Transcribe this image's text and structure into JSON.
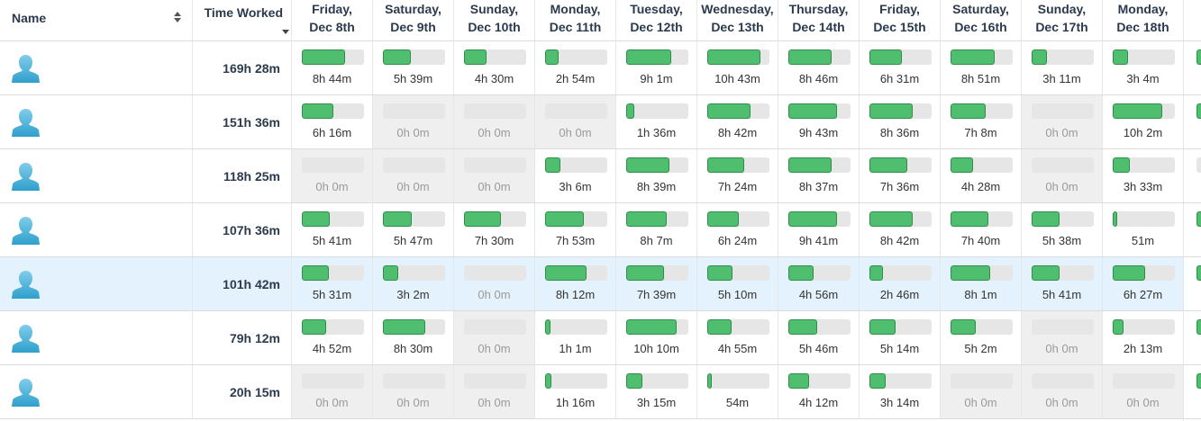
{
  "header": {
    "name_label": "Name",
    "time_label": "Time Worked",
    "days": [
      {
        "line1": "Friday,",
        "line2": "Dec 8th"
      },
      {
        "line1": "Saturday,",
        "line2": "Dec 9th"
      },
      {
        "line1": "Sunday,",
        "line2": "Dec 10th"
      },
      {
        "line1": "Monday,",
        "line2": "Dec 11th"
      },
      {
        "line1": "Tuesday,",
        "line2": "Dec 12th"
      },
      {
        "line1": "Wednesday,",
        "line2": "Dec 13th"
      },
      {
        "line1": "Thursday,",
        "line2": "Dec 14th"
      },
      {
        "line1": "Friday,",
        "line2": "Dec 15th"
      },
      {
        "line1": "Saturday,",
        "line2": "Dec 16th"
      },
      {
        "line1": "Sunday,",
        "line2": "Dec 17th"
      },
      {
        "line1": "Monday,",
        "line2": "Dec 18th"
      }
    ]
  },
  "icons": {
    "avatar": "user-silhouette-icon",
    "sort": "sort-icon",
    "sort_active": "sort-desc-caret-icon"
  },
  "colors": {
    "bar_fill": "#4fbe6f",
    "bar_track": "#e6e6e6",
    "highlight_row": "#e3f2fc",
    "zero_cell": "#efefef",
    "header_text": "#2c3a4e"
  },
  "rows": [
    {
      "total": "169h 28m",
      "highlight": false,
      "days": [
        {
          "text": "8h 44m",
          "fill": 0.7
        },
        {
          "text": "5h 39m",
          "fill": 0.45
        },
        {
          "text": "4h 30m",
          "fill": 0.36
        },
        {
          "text": "2h 54m",
          "fill": 0.22
        },
        {
          "text": "9h 1m",
          "fill": 0.72
        },
        {
          "text": "10h 43m",
          "fill": 0.86
        },
        {
          "text": "8h 46m",
          "fill": 0.7
        },
        {
          "text": "6h 31m",
          "fill": 0.52
        },
        {
          "text": "8h 51m",
          "fill": 0.71
        },
        {
          "text": "3h 11m",
          "fill": 0.25
        },
        {
          "text": "3h 4m",
          "fill": 0.25
        }
      ]
    },
    {
      "total": "151h 36m",
      "highlight": false,
      "days": [
        {
          "text": "6h 16m",
          "fill": 0.5
        },
        {
          "text": "0h 0m",
          "fill": 0
        },
        {
          "text": "0h 0m",
          "fill": 0
        },
        {
          "text": "0h 0m",
          "fill": 0
        },
        {
          "text": "1h 36m",
          "fill": 0.13
        },
        {
          "text": "8h 42m",
          "fill": 0.7
        },
        {
          "text": "9h 43m",
          "fill": 0.78
        },
        {
          "text": "8h 36m",
          "fill": 0.69
        },
        {
          "text": "7h 8m",
          "fill": 0.57
        },
        {
          "text": "0h 0m",
          "fill": 0
        },
        {
          "text": "10h 2m",
          "fill": 0.8
        }
      ]
    },
    {
      "total": "118h 25m",
      "highlight": false,
      "days": [
        {
          "text": "0h 0m",
          "fill": 0
        },
        {
          "text": "0h 0m",
          "fill": 0
        },
        {
          "text": "0h 0m",
          "fill": 0
        },
        {
          "text": "3h 6m",
          "fill": 0.25
        },
        {
          "text": "8h 39m",
          "fill": 0.69
        },
        {
          "text": "7h 24m",
          "fill": 0.59
        },
        {
          "text": "8h 37m",
          "fill": 0.69
        },
        {
          "text": "7h 36m",
          "fill": 0.61
        },
        {
          "text": "4h 28m",
          "fill": 0.36
        },
        {
          "text": "0h 0m",
          "fill": 0
        },
        {
          "text": "3h 33m",
          "fill": 0.28
        }
      ]
    },
    {
      "total": "107h 36m",
      "highlight": false,
      "days": [
        {
          "text": "5h 41m",
          "fill": 0.45
        },
        {
          "text": "5h 47m",
          "fill": 0.46
        },
        {
          "text": "7h 30m",
          "fill": 0.6
        },
        {
          "text": "7h 53m",
          "fill": 0.63
        },
        {
          "text": "8h 7m",
          "fill": 0.65
        },
        {
          "text": "6h 24m",
          "fill": 0.51
        },
        {
          "text": "9h 41m",
          "fill": 0.78
        },
        {
          "text": "8h 42m",
          "fill": 0.7
        },
        {
          "text": "7h 40m",
          "fill": 0.61
        },
        {
          "text": "5h 38m",
          "fill": 0.45
        },
        {
          "text": "51m",
          "fill": 0.07
        }
      ]
    },
    {
      "total": "101h 42m",
      "highlight": true,
      "days": [
        {
          "text": "5h 31m",
          "fill": 0.44
        },
        {
          "text": "3h 2m",
          "fill": 0.24
        },
        {
          "text": "0h 0m",
          "fill": 0
        },
        {
          "text": "8h 12m",
          "fill": 0.66
        },
        {
          "text": "7h 39m",
          "fill": 0.61
        },
        {
          "text": "5h 10m",
          "fill": 0.41
        },
        {
          "text": "4h 56m",
          "fill": 0.4
        },
        {
          "text": "2h 46m",
          "fill": 0.22
        },
        {
          "text": "8h 1m",
          "fill": 0.64
        },
        {
          "text": "5h 41m",
          "fill": 0.45
        },
        {
          "text": "6h 27m",
          "fill": 0.52
        }
      ]
    },
    {
      "total": "79h 12m",
      "highlight": false,
      "days": [
        {
          "text": "4h 52m",
          "fill": 0.39
        },
        {
          "text": "8h 30m",
          "fill": 0.68
        },
        {
          "text": "0h 0m",
          "fill": 0
        },
        {
          "text": "1h 1m",
          "fill": 0.08
        },
        {
          "text": "10h 10m",
          "fill": 0.81
        },
        {
          "text": "4h 55m",
          "fill": 0.39
        },
        {
          "text": "5h 46m",
          "fill": 0.46
        },
        {
          "text": "5h 14m",
          "fill": 0.42
        },
        {
          "text": "5h 2m",
          "fill": 0.4
        },
        {
          "text": "0h 0m",
          "fill": 0
        },
        {
          "text": "2h 13m",
          "fill": 0.18
        }
      ]
    },
    {
      "total": "20h 15m",
      "highlight": false,
      "days": [
        {
          "text": "0h 0m",
          "fill": 0
        },
        {
          "text": "0h 0m",
          "fill": 0
        },
        {
          "text": "0h 0m",
          "fill": 0
        },
        {
          "text": "1h 16m",
          "fill": 0.1
        },
        {
          "text": "3h 15m",
          "fill": 0.26
        },
        {
          "text": "54m",
          "fill": 0.07
        },
        {
          "text": "4h 12m",
          "fill": 0.34
        },
        {
          "text": "3h 14m",
          "fill": 0.26
        },
        {
          "text": "0h 0m",
          "fill": 0
        },
        {
          "text": "0h 0m",
          "fill": 0
        },
        {
          "text": "0h 0m",
          "fill": 0
        }
      ]
    }
  ]
}
